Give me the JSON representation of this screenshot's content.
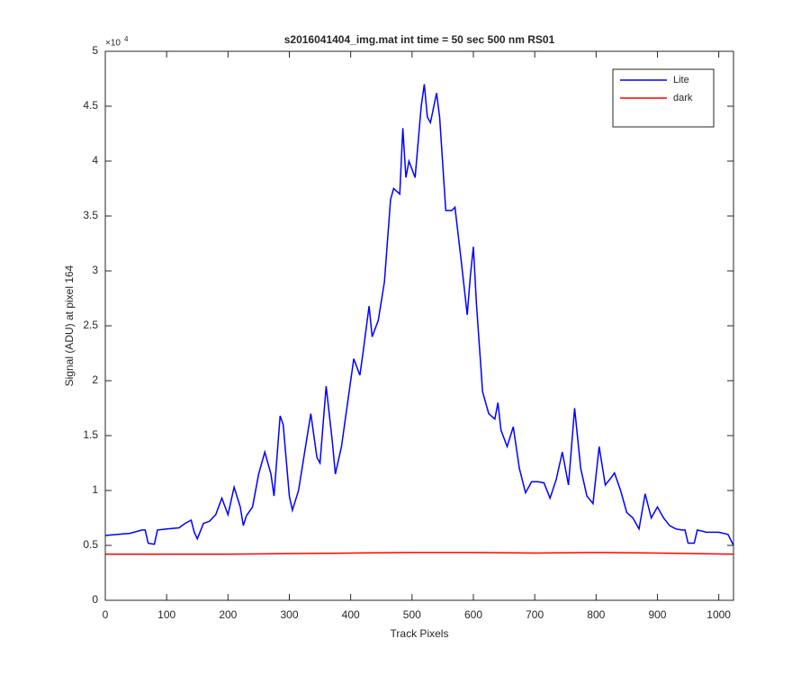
{
  "chart_data": {
    "type": "line",
    "title": "s2016041404_img.mat int time = 50 sec  500 nm RS01",
    "x_label": "Track Pixels",
    "y_label": "Signal (ADU) at pixel 164",
    "y_multiplier": "×10",
    "y_multiplier_exp": "4",
    "xlim": [
      0,
      1024
    ],
    "xticks": [
      0,
      100,
      200,
      300,
      400,
      500,
      600,
      700,
      800,
      900,
      1000
    ],
    "ylim": [
      0,
      5
    ],
    "yticks": [
      0,
      0.5,
      1,
      1.5,
      2,
      2.5,
      3,
      3.5,
      4,
      4.5,
      5
    ],
    "legend": "top-right",
    "series": [
      {
        "name": "Lite",
        "color": "#0000ff",
        "x": [
          0,
          20,
          40,
          60,
          65,
          70,
          80,
          85,
          100,
          120,
          130,
          140,
          145,
          150,
          160,
          170,
          180,
          190,
          200,
          210,
          220,
          225,
          230,
          240,
          250,
          260,
          270,
          275,
          285,
          290,
          300,
          305,
          315,
          325,
          335,
          345,
          350,
          360,
          370,
          375,
          385,
          395,
          405,
          415,
          420,
          430,
          435,
          445,
          455,
          465,
          470,
          480,
          485,
          490,
          495,
          505,
          515,
          520,
          525,
          530,
          540,
          545,
          555,
          565,
          570,
          580,
          590,
          595,
          600,
          605,
          615,
          625,
          635,
          640,
          645,
          655,
          665,
          675,
          685,
          695,
          705,
          715,
          725,
          735,
          745,
          755,
          765,
          775,
          785,
          795,
          805,
          815,
          825,
          830,
          840,
          850,
          860,
          870,
          880,
          890,
          900,
          910,
          920,
          930,
          940,
          945,
          950,
          960,
          965,
          980,
          1000,
          1015,
          1024
        ],
        "values": [
          0.59,
          0.6,
          0.61,
          0.64,
          0.64,
          0.52,
          0.51,
          0.64,
          0.65,
          0.66,
          0.7,
          0.73,
          0.62,
          0.56,
          0.7,
          0.72,
          0.78,
          0.93,
          0.78,
          1.03,
          0.85,
          0.68,
          0.77,
          0.85,
          1.15,
          1.35,
          1.15,
          0.95,
          1.68,
          1.6,
          0.95,
          0.82,
          1.0,
          1.35,
          1.7,
          1.3,
          1.25,
          1.95,
          1.45,
          1.15,
          1.4,
          1.8,
          2.2,
          2.05,
          2.25,
          2.68,
          2.4,
          2.55,
          2.9,
          3.65,
          3.75,
          3.7,
          4.3,
          3.85,
          4.0,
          3.85,
          4.5,
          4.7,
          4.4,
          4.35,
          4.62,
          4.4,
          3.55,
          3.55,
          3.58,
          3.1,
          2.6,
          2.95,
          3.22,
          2.7,
          1.9,
          1.7,
          1.65,
          1.8,
          1.55,
          1.4,
          1.58,
          1.2,
          0.98,
          1.08,
          1.08,
          1.07,
          0.93,
          1.1,
          1.35,
          1.05,
          1.75,
          1.2,
          0.95,
          0.88,
          1.4,
          1.05,
          1.12,
          1.16,
          1.0,
          0.8,
          0.75,
          0.65,
          0.97,
          0.75,
          0.85,
          0.75,
          0.68,
          0.65,
          0.64,
          0.64,
          0.52,
          0.52,
          0.64,
          0.62,
          0.62,
          0.6,
          0.5
        ]
      },
      {
        "name": "dark",
        "color": "#ff0000",
        "x": [
          0,
          100,
          200,
          300,
          400,
          500,
          600,
          700,
          800,
          900,
          1024
        ],
        "values": [
          0.42,
          0.42,
          0.42,
          0.425,
          0.43,
          0.435,
          0.435,
          0.43,
          0.435,
          0.43,
          0.42
        ]
      }
    ]
  }
}
